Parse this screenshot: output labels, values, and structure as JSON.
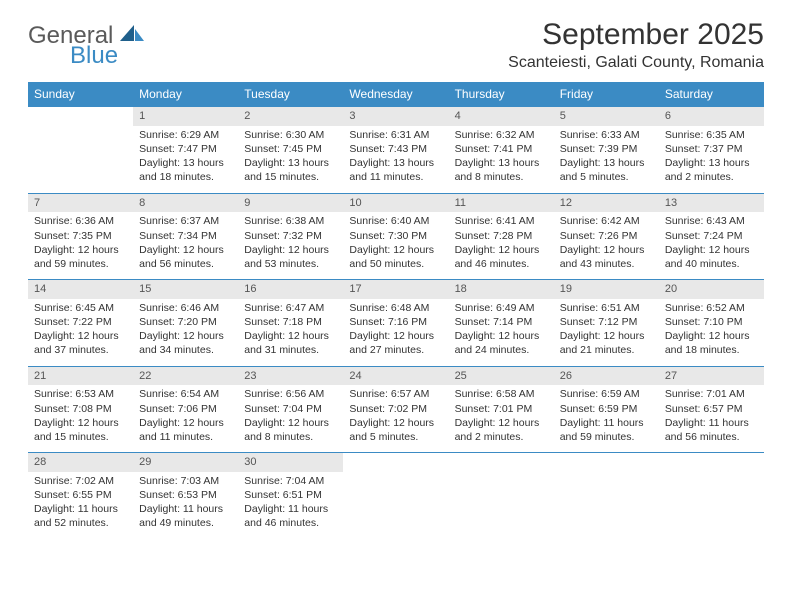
{
  "logo": {
    "word1": "General",
    "word2": "Blue"
  },
  "title": "September 2025",
  "location": "Scanteiesti, Galati County, Romania",
  "colors": {
    "header_bg": "#3b8bc4",
    "header_text": "#ffffff",
    "daynum_bg": "#e8e8e8",
    "border": "#3b8bc4",
    "text": "#333333",
    "logo_gray": "#5a5a5a",
    "logo_blue": "#3b8bc4"
  },
  "weekdays": [
    "Sunday",
    "Monday",
    "Tuesday",
    "Wednesday",
    "Thursday",
    "Friday",
    "Saturday"
  ],
  "weeks": [
    {
      "nums": [
        "",
        "1",
        "2",
        "3",
        "4",
        "5",
        "6"
      ],
      "cells": [
        null,
        {
          "sunrise": "Sunrise: 6:29 AM",
          "sunset": "Sunset: 7:47 PM",
          "day1": "Daylight: 13 hours",
          "day2": "and 18 minutes."
        },
        {
          "sunrise": "Sunrise: 6:30 AM",
          "sunset": "Sunset: 7:45 PM",
          "day1": "Daylight: 13 hours",
          "day2": "and 15 minutes."
        },
        {
          "sunrise": "Sunrise: 6:31 AM",
          "sunset": "Sunset: 7:43 PM",
          "day1": "Daylight: 13 hours",
          "day2": "and 11 minutes."
        },
        {
          "sunrise": "Sunrise: 6:32 AM",
          "sunset": "Sunset: 7:41 PM",
          "day1": "Daylight: 13 hours",
          "day2": "and 8 minutes."
        },
        {
          "sunrise": "Sunrise: 6:33 AM",
          "sunset": "Sunset: 7:39 PM",
          "day1": "Daylight: 13 hours",
          "day2": "and 5 minutes."
        },
        {
          "sunrise": "Sunrise: 6:35 AM",
          "sunset": "Sunset: 7:37 PM",
          "day1": "Daylight: 13 hours",
          "day2": "and 2 minutes."
        }
      ]
    },
    {
      "nums": [
        "7",
        "8",
        "9",
        "10",
        "11",
        "12",
        "13"
      ],
      "cells": [
        {
          "sunrise": "Sunrise: 6:36 AM",
          "sunset": "Sunset: 7:35 PM",
          "day1": "Daylight: 12 hours",
          "day2": "and 59 minutes."
        },
        {
          "sunrise": "Sunrise: 6:37 AM",
          "sunset": "Sunset: 7:34 PM",
          "day1": "Daylight: 12 hours",
          "day2": "and 56 minutes."
        },
        {
          "sunrise": "Sunrise: 6:38 AM",
          "sunset": "Sunset: 7:32 PM",
          "day1": "Daylight: 12 hours",
          "day2": "and 53 minutes."
        },
        {
          "sunrise": "Sunrise: 6:40 AM",
          "sunset": "Sunset: 7:30 PM",
          "day1": "Daylight: 12 hours",
          "day2": "and 50 minutes."
        },
        {
          "sunrise": "Sunrise: 6:41 AM",
          "sunset": "Sunset: 7:28 PM",
          "day1": "Daylight: 12 hours",
          "day2": "and 46 minutes."
        },
        {
          "sunrise": "Sunrise: 6:42 AM",
          "sunset": "Sunset: 7:26 PM",
          "day1": "Daylight: 12 hours",
          "day2": "and 43 minutes."
        },
        {
          "sunrise": "Sunrise: 6:43 AM",
          "sunset": "Sunset: 7:24 PM",
          "day1": "Daylight: 12 hours",
          "day2": "and 40 minutes."
        }
      ]
    },
    {
      "nums": [
        "14",
        "15",
        "16",
        "17",
        "18",
        "19",
        "20"
      ],
      "cells": [
        {
          "sunrise": "Sunrise: 6:45 AM",
          "sunset": "Sunset: 7:22 PM",
          "day1": "Daylight: 12 hours",
          "day2": "and 37 minutes."
        },
        {
          "sunrise": "Sunrise: 6:46 AM",
          "sunset": "Sunset: 7:20 PM",
          "day1": "Daylight: 12 hours",
          "day2": "and 34 minutes."
        },
        {
          "sunrise": "Sunrise: 6:47 AM",
          "sunset": "Sunset: 7:18 PM",
          "day1": "Daylight: 12 hours",
          "day2": "and 31 minutes."
        },
        {
          "sunrise": "Sunrise: 6:48 AM",
          "sunset": "Sunset: 7:16 PM",
          "day1": "Daylight: 12 hours",
          "day2": "and 27 minutes."
        },
        {
          "sunrise": "Sunrise: 6:49 AM",
          "sunset": "Sunset: 7:14 PM",
          "day1": "Daylight: 12 hours",
          "day2": "and 24 minutes."
        },
        {
          "sunrise": "Sunrise: 6:51 AM",
          "sunset": "Sunset: 7:12 PM",
          "day1": "Daylight: 12 hours",
          "day2": "and 21 minutes."
        },
        {
          "sunrise": "Sunrise: 6:52 AM",
          "sunset": "Sunset: 7:10 PM",
          "day1": "Daylight: 12 hours",
          "day2": "and 18 minutes."
        }
      ]
    },
    {
      "nums": [
        "21",
        "22",
        "23",
        "24",
        "25",
        "26",
        "27"
      ],
      "cells": [
        {
          "sunrise": "Sunrise: 6:53 AM",
          "sunset": "Sunset: 7:08 PM",
          "day1": "Daylight: 12 hours",
          "day2": "and 15 minutes."
        },
        {
          "sunrise": "Sunrise: 6:54 AM",
          "sunset": "Sunset: 7:06 PM",
          "day1": "Daylight: 12 hours",
          "day2": "and 11 minutes."
        },
        {
          "sunrise": "Sunrise: 6:56 AM",
          "sunset": "Sunset: 7:04 PM",
          "day1": "Daylight: 12 hours",
          "day2": "and 8 minutes."
        },
        {
          "sunrise": "Sunrise: 6:57 AM",
          "sunset": "Sunset: 7:02 PM",
          "day1": "Daylight: 12 hours",
          "day2": "and 5 minutes."
        },
        {
          "sunrise": "Sunrise: 6:58 AM",
          "sunset": "Sunset: 7:01 PM",
          "day1": "Daylight: 12 hours",
          "day2": "and 2 minutes."
        },
        {
          "sunrise": "Sunrise: 6:59 AM",
          "sunset": "Sunset: 6:59 PM",
          "day1": "Daylight: 11 hours",
          "day2": "and 59 minutes."
        },
        {
          "sunrise": "Sunrise: 7:01 AM",
          "sunset": "Sunset: 6:57 PM",
          "day1": "Daylight: 11 hours",
          "day2": "and 56 minutes."
        }
      ]
    },
    {
      "nums": [
        "28",
        "29",
        "30",
        "",
        "",
        "",
        ""
      ],
      "cells": [
        {
          "sunrise": "Sunrise: 7:02 AM",
          "sunset": "Sunset: 6:55 PM",
          "day1": "Daylight: 11 hours",
          "day2": "and 52 minutes."
        },
        {
          "sunrise": "Sunrise: 7:03 AM",
          "sunset": "Sunset: 6:53 PM",
          "day1": "Daylight: 11 hours",
          "day2": "and 49 minutes."
        },
        {
          "sunrise": "Sunrise: 7:04 AM",
          "sunset": "Sunset: 6:51 PM",
          "day1": "Daylight: 11 hours",
          "day2": "and 46 minutes."
        },
        null,
        null,
        null,
        null
      ]
    }
  ]
}
